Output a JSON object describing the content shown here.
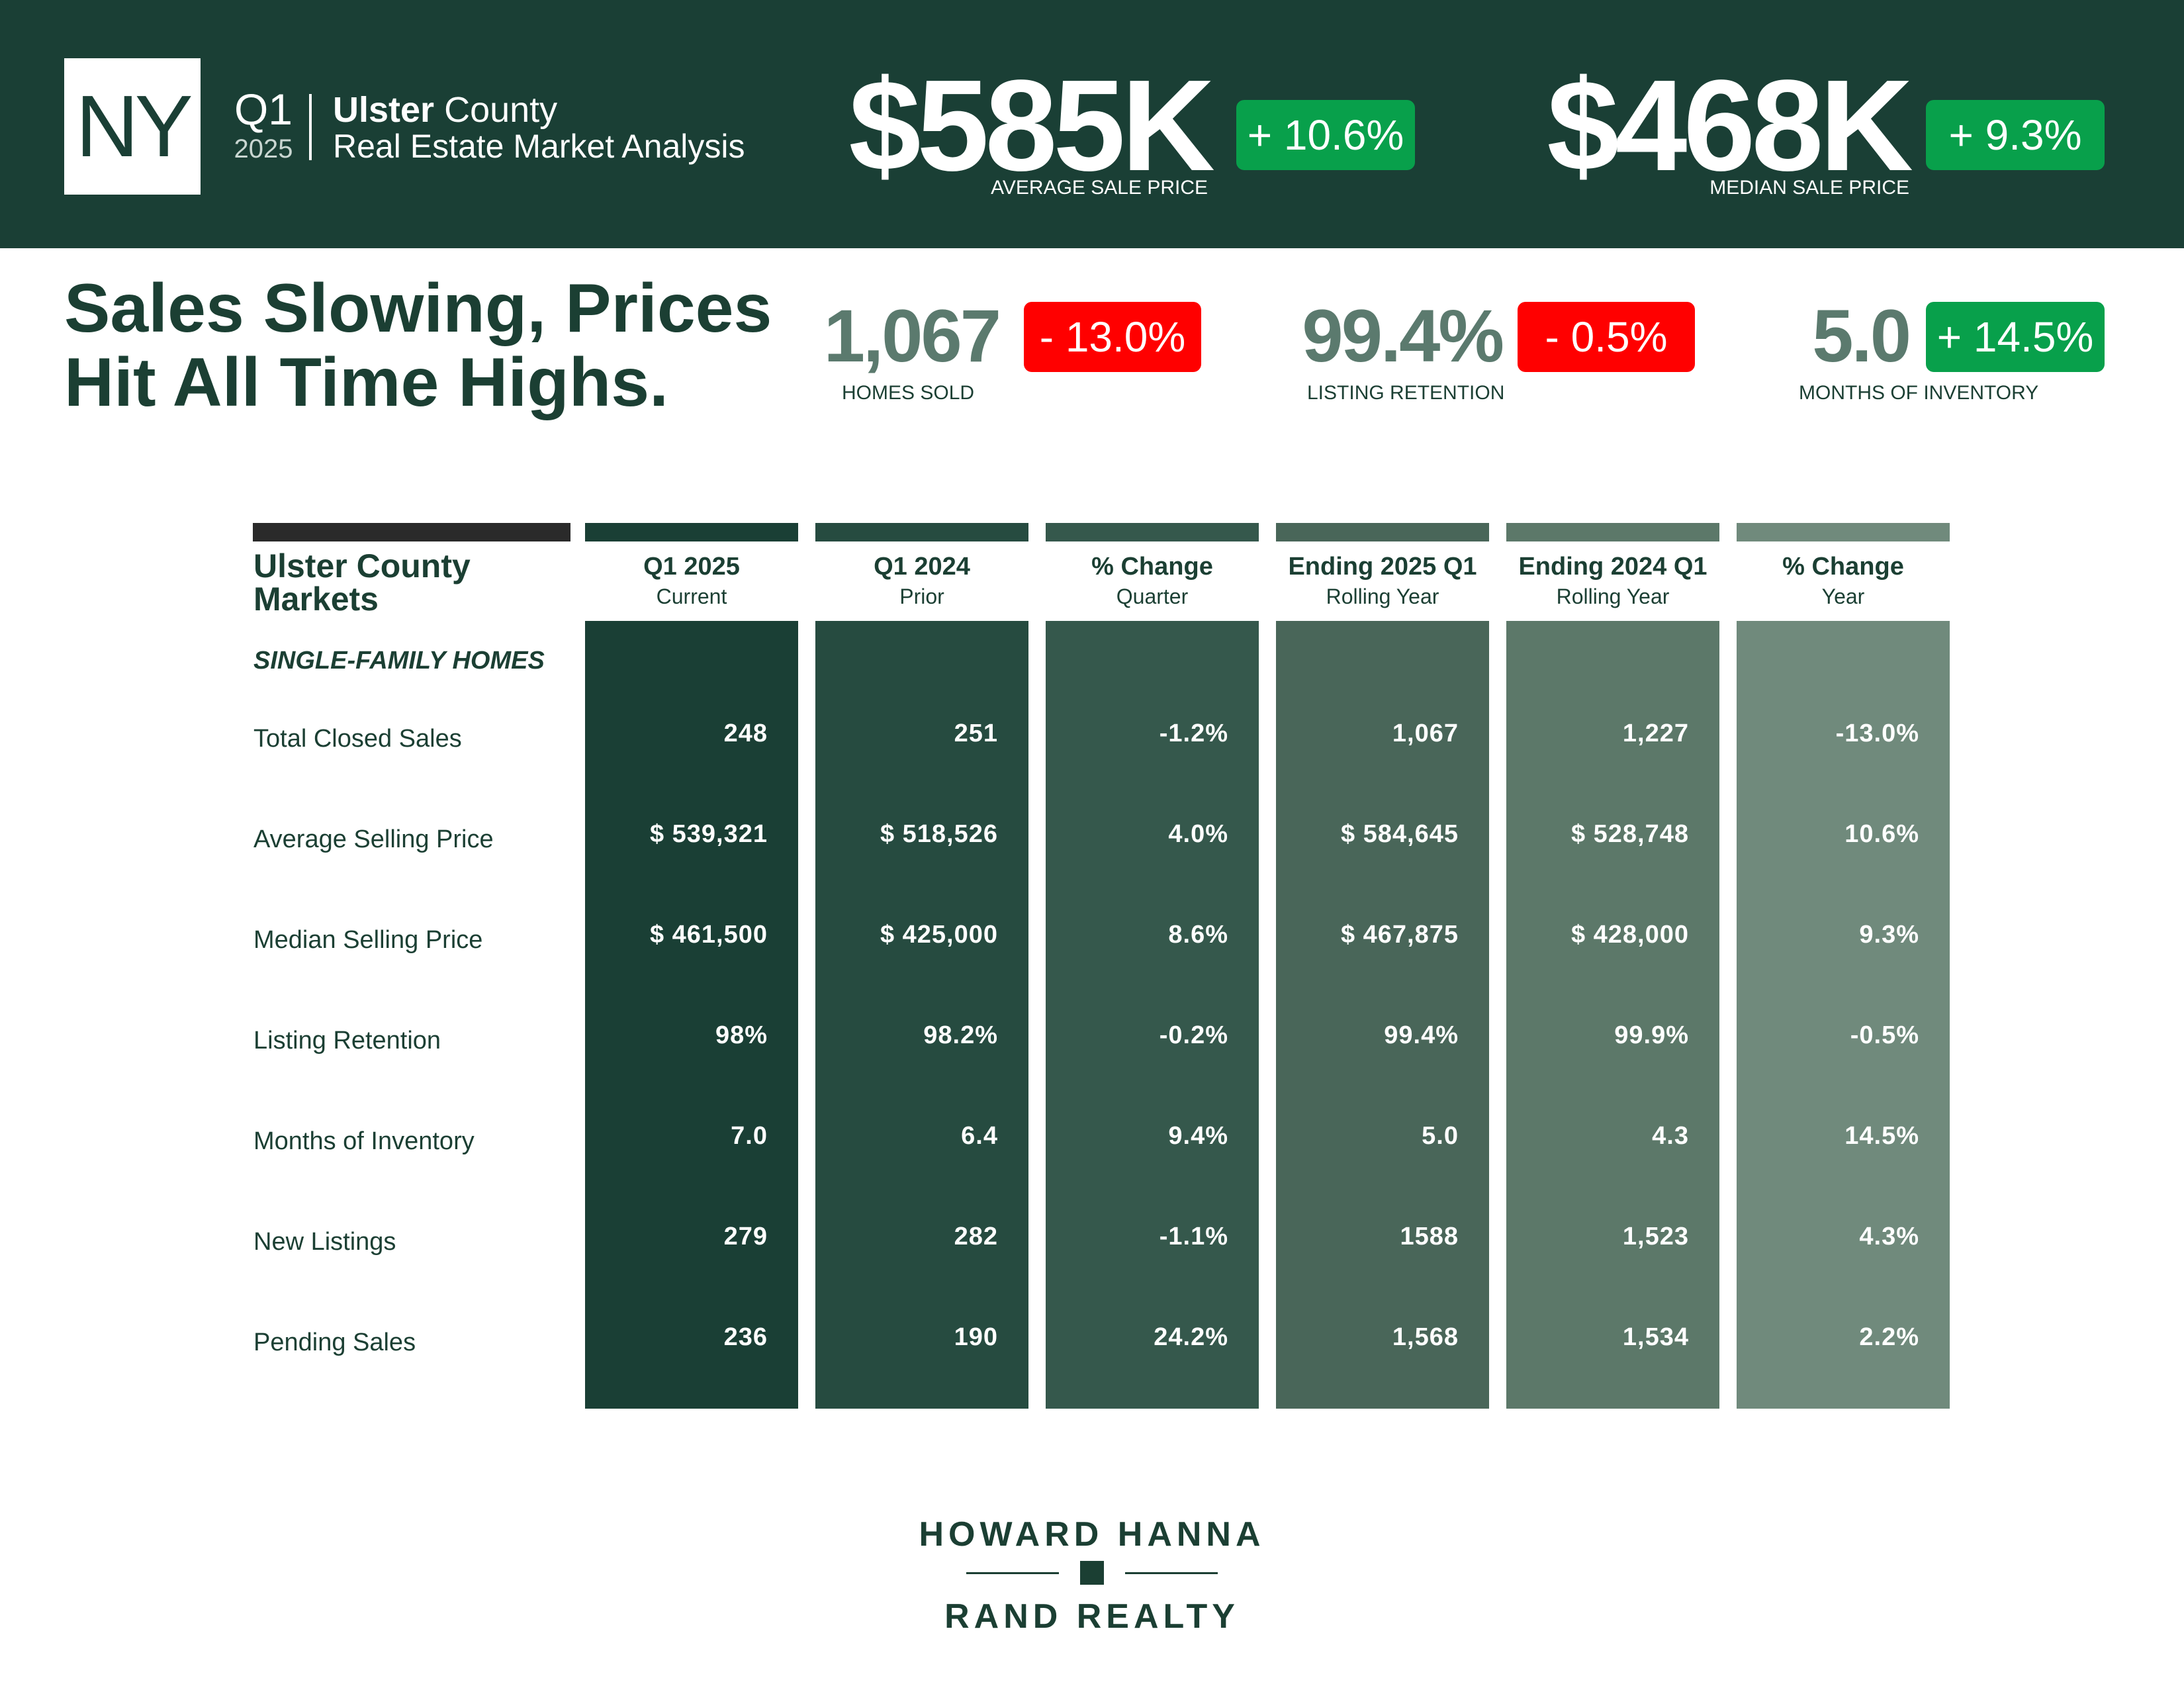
{
  "header": {
    "state": "NY",
    "quarter": "Q1",
    "year": "2025",
    "county_bold": "Ulster",
    "county_rest": " County",
    "subtitle": "Real Estate Market Analysis",
    "avg_sale_price": {
      "value": "$585K",
      "change": "+ 10.6%",
      "label": "AVERAGE SALE PRICE"
    },
    "median_sale_price": {
      "value": "$468K",
      "change": "+ 9.3%",
      "label": "MEDIAN SALE PRICE"
    }
  },
  "headline": "Sales Slowing, Prices Hit All Time Highs.",
  "kpis": [
    {
      "value": "1,067",
      "change": "- 13.0%",
      "label": "HOMES SOLD",
      "trend": "down",
      "value_color": "#5b7a6e",
      "badge_color": "#ff0000"
    },
    {
      "value": "99.4%",
      "change": "- 0.5%",
      "label": "LISTING RETENTION",
      "trend": "down",
      "value_color": "#5b7a6e",
      "badge_color": "#ff0000"
    },
    {
      "value": "5.0",
      "change": "+ 14.5%",
      "label": "MONTHS OF INVENTORY",
      "trend": "up",
      "value_color": "#5b7a6e",
      "badge_color": "#08a04b"
    }
  ],
  "table": {
    "title": "Ulster County Markets",
    "section": "SINGLE-FAMILY HOMES",
    "row_labels": [
      "Total Closed Sales",
      "Average Selling Price",
      "Median Selling Price",
      "Listing Retention",
      "Months of Inventory",
      "New Listings",
      "Pending Sales"
    ],
    "columns": [
      {
        "title": "Q1 2025",
        "subtitle": "Current",
        "color": "#1a3f35",
        "cells": [
          "248",
          "$ 539,321",
          "$ 461,500",
          "98%",
          "7.0",
          "279",
          "236"
        ]
      },
      {
        "title": "Q1 2024",
        "subtitle": "Prior",
        "color": "#264b40",
        "cells": [
          "251",
          "$ 518,526",
          "$ 425,000",
          "98.2%",
          "6.4",
          "282",
          "190"
        ]
      },
      {
        "title": "% Change",
        "subtitle": "Quarter",
        "color": "#35584c",
        "cells": [
          "-1.2%",
          "4.0%",
          "8.6%",
          "-0.2%",
          "9.4%",
          "-1.1%",
          "24.2%"
        ]
      },
      {
        "title": "Ending 2025 Q1",
        "subtitle": "Rolling Year",
        "color": "#496659",
        "cells": [
          "1,067",
          "$ 584,645",
          "$ 467,875",
          "99.4%",
          "5.0",
          "1588",
          "1,568"
        ]
      },
      {
        "title": "Ending 2024 Q1",
        "subtitle": "Rolling Year",
        "color": "#5c7869",
        "cells": [
          "1,227",
          "$ 528,748",
          "$ 428,000",
          "99.9%",
          "4.3",
          "1,523",
          "1,534"
        ]
      },
      {
        "title": "% Change",
        "subtitle": "Year",
        "color": "#708a7c",
        "cells": [
          "-13.0%",
          "10.6%",
          "9.3%",
          "-0.5%",
          "14.5%",
          "4.3%",
          "2.2%"
        ]
      }
    ]
  },
  "footer": {
    "brand_top": "HOWARD HANNA",
    "brand_bottom": "RAND REALTY"
  },
  "colors": {
    "header_bg": "#1a3f35",
    "positive": "#08a04b",
    "negative": "#ff0000",
    "text_dark": "#1b3f33"
  }
}
